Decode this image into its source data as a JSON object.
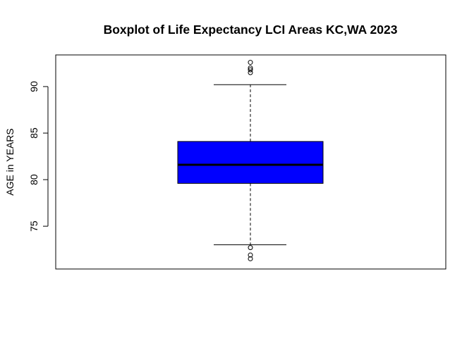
{
  "chart_data": {
    "type": "boxplot",
    "title": "Boxplot of Life Expectancy LCI Areas KC,WA 2023",
    "xlabel": "",
    "ylabel": "AGE in YEARS",
    "ylim": [
      70.4,
      93.4
    ],
    "yticks": [
      75,
      80,
      85,
      90
    ],
    "ytick_labels": [
      "75",
      "80",
      "85",
      "90"
    ],
    "box": {
      "whisker_low": 73.0,
      "q1": 79.6,
      "median": 81.6,
      "q3": 84.1,
      "whisker_high": 90.2,
      "fill_color": "#0000ff"
    },
    "outliers": [
      71.5,
      71.9,
      72.7,
      91.5,
      91.8,
      92.0,
      92.6
    ],
    "grid": false,
    "legend": "none"
  }
}
